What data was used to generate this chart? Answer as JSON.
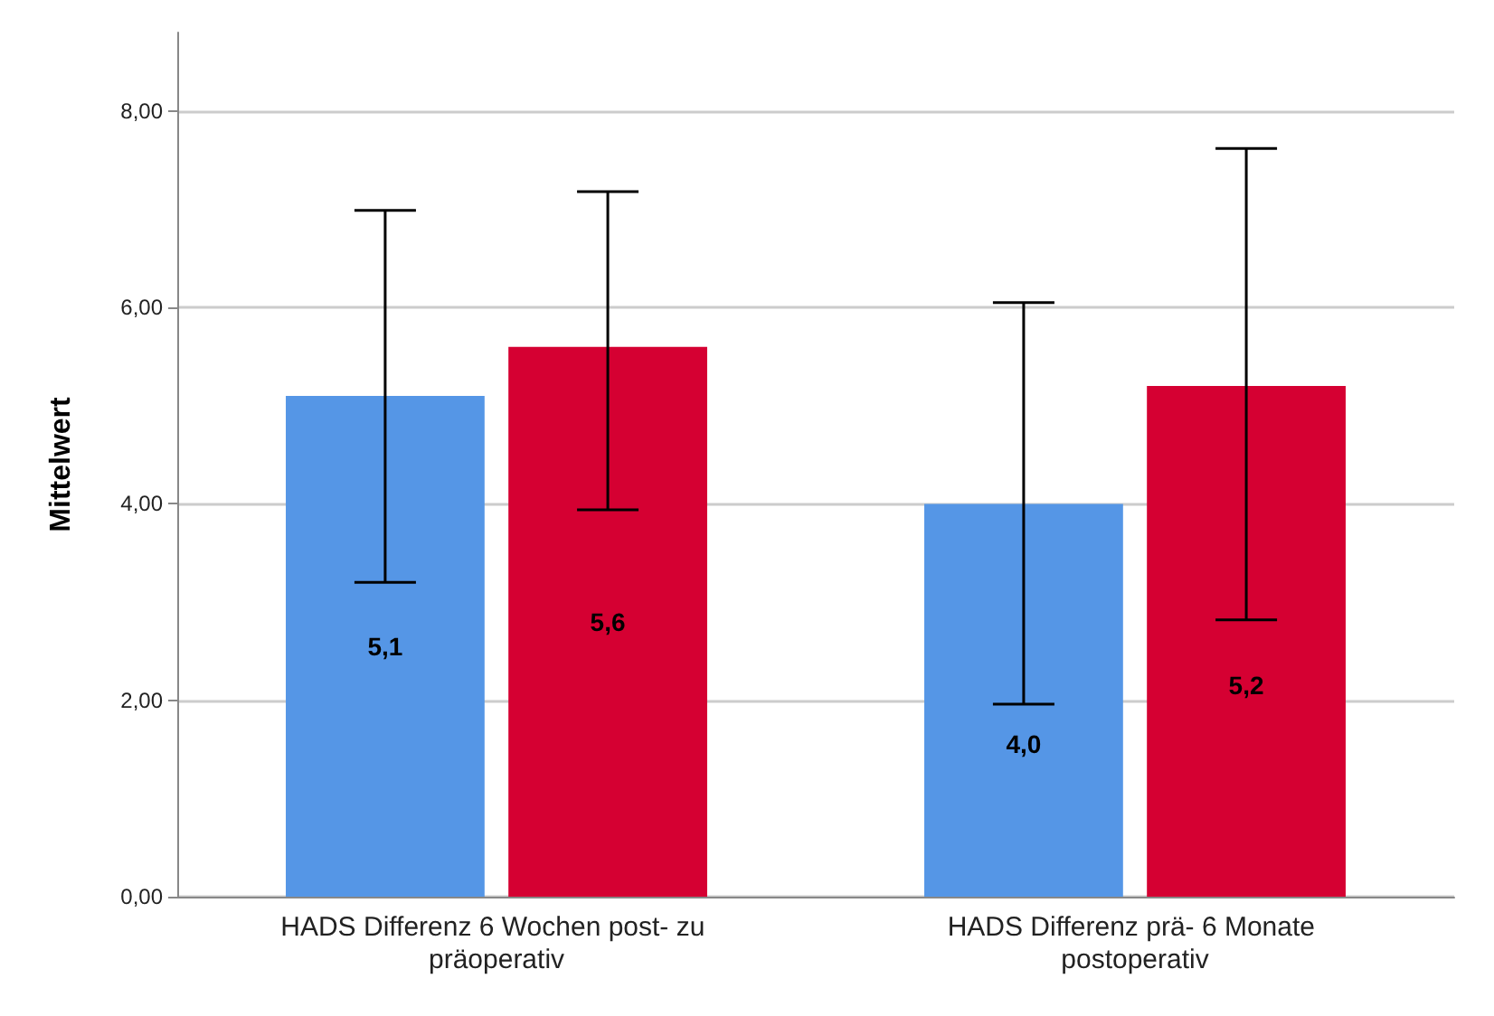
{
  "chart_data": {
    "type": "bar",
    "ylabel": "Mittelwert",
    "categories": [
      "HADS Differenz 6 Wochen post- zu präoperativ",
      "HADS Differenz prä- 6 Monate postoperativ"
    ],
    "series": [
      {
        "color": "#5596e6",
        "values": [
          5.1,
          4.0
        ],
        "value_labels": [
          "5,1",
          "4,0"
        ],
        "errors": [
          [
            3.2,
            6.99
          ],
          [
            1.96,
            6.05
          ]
        ]
      },
      {
        "color": "#d50032",
        "values": [
          5.6,
          5.2
        ],
        "value_labels": [
          "5,6",
          "5,2"
        ],
        "errors": [
          [
            3.94,
            7.18
          ],
          [
            2.82,
            7.62
          ]
        ]
      }
    ],
    "ylim": [
      0,
      8.8
    ],
    "yticks": [
      {
        "value": 0,
        "label": "0,00"
      },
      {
        "value": 2,
        "label": "2,00"
      },
      {
        "value": 4,
        "label": "4,00"
      },
      {
        "value": 6,
        "label": "6,00"
      },
      {
        "value": 8,
        "label": "8,00"
      }
    ],
    "grid": "y"
  }
}
